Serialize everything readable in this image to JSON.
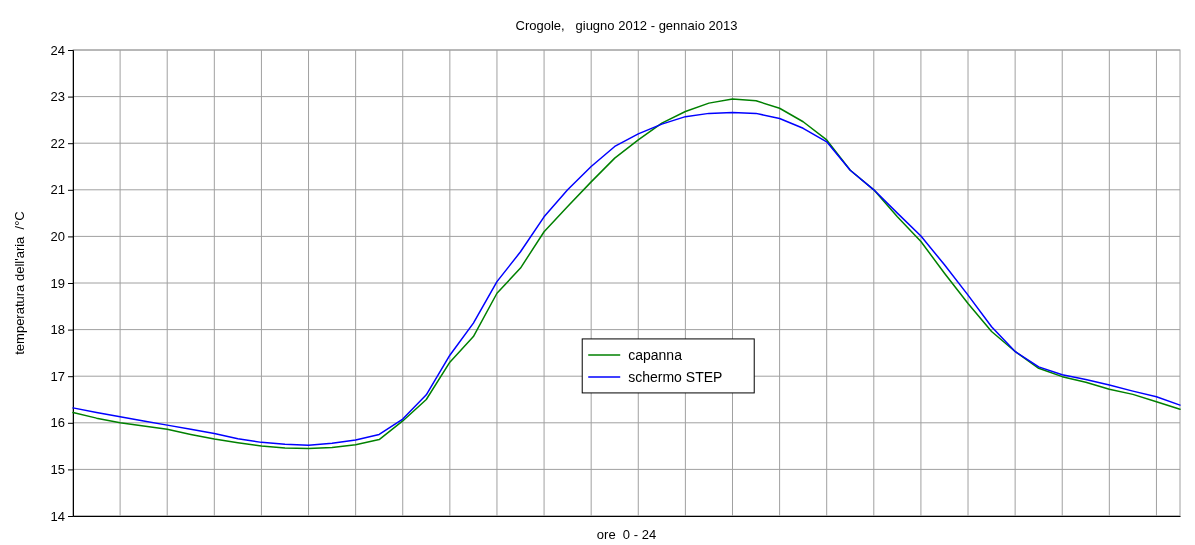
{
  "chart_data": {
    "type": "line",
    "title": "Crogole,   giugno 2012 - gennaio 2013",
    "xlabel": "ore  0 - 24",
    "ylabel": "temperatura dell'aria  /°C",
    "categories": [
      null,
      null,
      null,
      null,
      null,
      null,
      null,
      null,
      null,
      null,
      null,
      null,
      null,
      null,
      null,
      null,
      null,
      null,
      null,
      null,
      null,
      null,
      null,
      null,
      null,
      null,
      null,
      null,
      null,
      null,
      null,
      null,
      null,
      null,
      null,
      null,
      null,
      null,
      null,
      null,
      null,
      null,
      null,
      null,
      null,
      null,
      null,
      null
    ],
    "series": [
      {
        "name": "capanna",
        "color": "#008000",
        "values": [
          16.22,
          16.1,
          16.0,
          15.93,
          15.86,
          15.75,
          15.65,
          15.57,
          15.5,
          15.46,
          15.45,
          15.47,
          15.53,
          15.64,
          16.04,
          16.5,
          17.3,
          17.85,
          18.78,
          19.32,
          20.1,
          20.64,
          21.17,
          21.68,
          22.07,
          22.43,
          22.68,
          22.86,
          22.95,
          22.91,
          22.75,
          22.46,
          22.07,
          21.42,
          21.0,
          20.42,
          19.89,
          19.21,
          18.56,
          17.96,
          17.53,
          17.17,
          16.99,
          16.87,
          16.72,
          16.61,
          16.45,
          16.29
        ]
      },
      {
        "name": "schermo STEP",
        "color": "#0000ff",
        "values": [
          16.32,
          16.22,
          16.13,
          16.04,
          15.95,
          15.86,
          15.77,
          15.66,
          15.58,
          15.54,
          15.52,
          15.56,
          15.63,
          15.75,
          16.08,
          16.6,
          17.45,
          18.14,
          19.03,
          19.67,
          20.42,
          21.0,
          21.5,
          21.93,
          22.2,
          22.41,
          22.57,
          22.64,
          22.66,
          22.64,
          22.53,
          22.32,
          22.03,
          21.42,
          21.0,
          20.5,
          20.01,
          19.39,
          18.74,
          18.06,
          17.53,
          17.2,
          17.03,
          16.93,
          16.81,
          16.68,
          16.56,
          16.38
        ]
      }
    ],
    "ylim": [
      14,
      24
    ],
    "yticks": [
      14,
      15,
      16,
      17,
      18,
      19,
      20,
      21,
      22,
      23,
      24
    ],
    "grid": true,
    "legend": "center",
    "tick_labels": "y"
  }
}
